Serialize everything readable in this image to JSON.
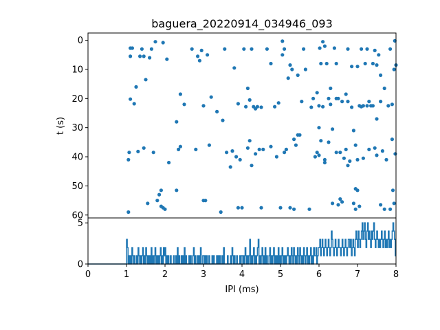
{
  "chart_data": [
    {
      "type": "scatter",
      "title": "baguera_20220914_034946_093",
      "ylabel": "t (s)",
      "xlim": [
        0,
        8
      ],
      "ylim": [
        61,
        -2.5
      ],
      "yticks": [
        0,
        10,
        20,
        30,
        40,
        50,
        60
      ],
      "color": "#1f77b4",
      "points": [
        [
          1.05,
          59.0
        ],
        [
          1.05,
          41.0
        ],
        [
          1.07,
          38.5
        ],
        [
          1.1,
          20.2
        ],
        [
          1.1,
          5.5
        ],
        [
          1.1,
          2.7
        ],
        [
          1.15,
          2.7
        ],
        [
          1.2,
          21.8
        ],
        [
          1.25,
          16.0
        ],
        [
          1.3,
          38.2
        ],
        [
          1.35,
          5.5
        ],
        [
          1.4,
          3.0
        ],
        [
          1.45,
          37.0
        ],
        [
          1.45,
          5.5
        ],
        [
          1.5,
          13.5
        ],
        [
          1.55,
          56.0
        ],
        [
          1.6,
          6.0
        ],
        [
          1.65,
          3.0
        ],
        [
          1.7,
          38.5
        ],
        [
          1.75,
          0.5
        ],
        [
          1.8,
          55.0
        ],
        [
          1.85,
          53.0
        ],
        [
          1.9,
          51.5
        ],
        [
          1.9,
          57.0
        ],
        [
          1.95,
          0.8
        ],
        [
          1.95,
          57.5
        ],
        [
          2.0,
          58.0
        ],
        [
          2.05,
          6.5
        ],
        [
          2.1,
          42.0
        ],
        [
          2.3,
          51.5
        ],
        [
          2.3,
          28.0
        ],
        [
          2.35,
          37.5
        ],
        [
          2.4,
          36.5
        ],
        [
          2.4,
          18.5
        ],
        [
          2.5,
          22.0
        ],
        [
          2.7,
          3.0
        ],
        [
          2.8,
          37.5
        ],
        [
          2.85,
          5.5
        ],
        [
          2.9,
          7.0
        ],
        [
          2.95,
          3.5
        ],
        [
          3.0,
          22.5
        ],
        [
          3.0,
          55.0
        ],
        [
          3.05,
          55.0
        ],
        [
          3.1,
          5.0
        ],
        [
          3.15,
          36.0
        ],
        [
          3.2,
          19.5
        ],
        [
          3.35,
          24.5
        ],
        [
          3.45,
          59.0
        ],
        [
          3.5,
          27.5
        ],
        [
          3.55,
          3.0
        ],
        [
          3.6,
          38.5
        ],
        [
          3.7,
          43.5
        ],
        [
          3.75,
          38.0
        ],
        [
          3.8,
          9.5
        ],
        [
          3.85,
          40.0
        ],
        [
          3.9,
          21.8
        ],
        [
          3.9,
          57.5
        ],
        [
          3.95,
          41.0
        ],
        [
          4.0,
          57.5
        ],
        [
          4.05,
          3.0
        ],
        [
          4.1,
          22.8
        ],
        [
          4.15,
          16.5
        ],
        [
          4.15,
          37.0
        ],
        [
          4.2,
          20.5
        ],
        [
          4.2,
          34.5
        ],
        [
          4.25,
          3.0
        ],
        [
          4.25,
          43.0
        ],
        [
          4.3,
          22.8
        ],
        [
          4.35,
          23.5
        ],
        [
          4.35,
          39.0
        ],
        [
          4.4,
          22.8
        ],
        [
          4.45,
          37.5
        ],
        [
          4.5,
          23.0
        ],
        [
          4.5,
          57.5
        ],
        [
          4.55,
          37.5
        ],
        [
          4.65,
          3.0
        ],
        [
          4.75,
          36.5
        ],
        [
          4.75,
          8.0
        ],
        [
          4.85,
          22.8
        ],
        [
          4.9,
          40.0
        ],
        [
          4.95,
          21.5
        ],
        [
          5.0,
          57.5
        ],
        [
          5.05,
          5.0
        ],
        [
          5.05,
          0.3
        ],
        [
          5.1,
          38.5
        ],
        [
          5.1,
          3.0
        ],
        [
          5.15,
          37.5
        ],
        [
          5.2,
          13.0
        ],
        [
          5.25,
          57.5
        ],
        [
          5.25,
          8.5
        ],
        [
          5.3,
          10.0
        ],
        [
          5.35,
          34.0
        ],
        [
          5.35,
          58.0
        ],
        [
          5.4,
          36.0
        ],
        [
          5.45,
          32.5
        ],
        [
          5.45,
          12.0
        ],
        [
          5.5,
          32.5
        ],
        [
          5.55,
          21.0
        ],
        [
          5.6,
          3.0
        ],
        [
          5.65,
          10.0
        ],
        [
          5.75,
          58.0
        ],
        [
          5.8,
          23.0
        ],
        [
          5.85,
          20.0
        ],
        [
          5.9,
          40.0
        ],
        [
          5.95,
          18.0
        ],
        [
          5.95,
          38.5
        ],
        [
          6.0,
          39.5
        ],
        [
          6.0,
          30.0
        ],
        [
          6.0,
          22.5
        ],
        [
          6.02,
          2.7
        ],
        [
          6.05,
          8.0
        ],
        [
          6.05,
          34.5
        ],
        [
          6.1,
          22.8
        ],
        [
          6.1,
          0.5
        ],
        [
          6.15,
          41.0
        ],
        [
          6.15,
          2.0
        ],
        [
          6.15,
          42.0
        ],
        [
          6.2,
          8.0
        ],
        [
          6.25,
          35.0
        ],
        [
          6.25,
          20.0
        ],
        [
          6.3,
          16.5
        ],
        [
          6.3,
          22.0
        ],
        [
          6.35,
          30.5
        ],
        [
          6.35,
          56.0
        ],
        [
          6.4,
          2.7
        ],
        [
          6.45,
          8.0
        ],
        [
          6.45,
          20.0
        ],
        [
          6.45,
          38.5
        ],
        [
          6.5,
          56.5
        ],
        [
          6.5,
          20.0
        ],
        [
          6.55,
          54.5
        ],
        [
          6.55,
          38.5
        ],
        [
          6.6,
          21.0
        ],
        [
          6.6,
          55.5
        ],
        [
          6.65,
          40.5
        ],
        [
          6.7,
          37.5
        ],
        [
          6.7,
          18.5
        ],
        [
          6.75,
          21.0
        ],
        [
          6.75,
          3.0
        ],
        [
          6.75,
          43.0
        ],
        [
          6.8,
          41.5
        ],
        [
          6.85,
          9.0
        ],
        [
          6.85,
          23.0
        ],
        [
          6.9,
          31.0
        ],
        [
          6.9,
          56.0
        ],
        [
          6.95,
          51.0
        ],
        [
          6.95,
          58.0
        ],
        [
          6.95,
          36.0
        ],
        [
          7.0,
          41.0
        ],
        [
          7.0,
          51.5
        ],
        [
          7.0,
          9.0
        ],
        [
          7.05,
          22.5
        ],
        [
          7.05,
          57.0
        ],
        [
          7.1,
          3.0
        ],
        [
          7.1,
          22.8
        ],
        [
          7.15,
          40.5
        ],
        [
          7.15,
          22.5
        ],
        [
          7.2,
          8.0
        ],
        [
          7.25,
          22.5
        ],
        [
          7.25,
          3.0
        ],
        [
          7.3,
          37.5
        ],
        [
          7.3,
          21.0
        ],
        [
          7.35,
          22.5
        ],
        [
          7.4,
          8.0
        ],
        [
          7.4,
          22.5
        ],
        [
          7.45,
          37.0
        ],
        [
          7.5,
          39.5
        ],
        [
          7.5,
          27.0
        ],
        [
          7.55,
          5.0
        ],
        [
          7.6,
          56.5
        ],
        [
          7.6,
          21.0
        ],
        [
          7.65,
          38.0
        ],
        [
          7.7,
          58.0
        ],
        [
          7.75,
          41.0
        ],
        [
          7.8,
          22.5
        ],
        [
          7.85,
          58.0
        ],
        [
          7.85,
          3.0
        ],
        [
          7.9,
          34.0
        ],
        [
          7.95,
          10.0
        ],
        [
          8.0,
          8.5
        ],
        [
          7.95,
          56.0
        ],
        [
          7.92,
          51.5
        ],
        [
          7.98,
          39.0
        ],
        [
          7.97,
          0.2
        ],
        [
          7.9,
          22.0
        ],
        [
          7.7,
          16.5
        ],
        [
          7.6,
          12.0
        ],
        [
          7.5,
          8.5
        ],
        [
          7.45,
          3.5
        ]
      ]
    },
    {
      "type": "line",
      "xlabel": "IPI (ms)",
      "ylabel": "",
      "xlim": [
        0,
        8
      ],
      "ylim": [
        0,
        5.6
      ],
      "xticks": [
        0,
        1,
        2,
        3,
        4,
        5,
        6,
        7,
        8
      ],
      "yticks": [
        0,
        5
      ],
      "color": "#1f77b4",
      "bin_width": 0.02,
      "counts": [
        0,
        0,
        0,
        0,
        0,
        0,
        0,
        0,
        0,
        0,
        0,
        0,
        0,
        0,
        0,
        0,
        0,
        0,
        0,
        0,
        0,
        0,
        0,
        0,
        0,
        0,
        0,
        0,
        0,
        0,
        0,
        0,
        0,
        0,
        0,
        0,
        0,
        0,
        0,
        0,
        0,
        0,
        0,
        0,
        0,
        0,
        0,
        0,
        0,
        0,
        3,
        2,
        0,
        1,
        0,
        1,
        0,
        2,
        1,
        0,
        1,
        0,
        0,
        1,
        0,
        2,
        1,
        0,
        1,
        0,
        1,
        2,
        0,
        1,
        0,
        2,
        1,
        0,
        1,
        0,
        1,
        0,
        2,
        0,
        1,
        0,
        1,
        2,
        0,
        1,
        0,
        1,
        0,
        1,
        2,
        0,
        1,
        0,
        2,
        1,
        2,
        0,
        1,
        0,
        1,
        0,
        0,
        1,
        0,
        0,
        0,
        1,
        0,
        0,
        1,
        0,
        2,
        0,
        1,
        0,
        0,
        1,
        0,
        1,
        0,
        2,
        0,
        1,
        0,
        0,
        0,
        1,
        0,
        1,
        0,
        0,
        1,
        2,
        0,
        1,
        0,
        0,
        1,
        0,
        1,
        0,
        2,
        0,
        0,
        1,
        1,
        0,
        1,
        0,
        1,
        0,
        0,
        1,
        0,
        0,
        0,
        1,
        0,
        1,
        0,
        0,
        0,
        1,
        0,
        1,
        0,
        1,
        0,
        0,
        1,
        0,
        2,
        0,
        0,
        0,
        0,
        1,
        0,
        0,
        0,
        1,
        0,
        2,
        1,
        0,
        1,
        0,
        0,
        1,
        0,
        0,
        0,
        1,
        0,
        1,
        1,
        0,
        1,
        0,
        2,
        1,
        0,
        1,
        0,
        1,
        3,
        0,
        1,
        0,
        1,
        2,
        0,
        1,
        0,
        1,
        2,
        3,
        0,
        1,
        0,
        1,
        2,
        0,
        1,
        0,
        2,
        0,
        1,
        0,
        0,
        1,
        2,
        0,
        1,
        0,
        1,
        2,
        0,
        1,
        0,
        1,
        0,
        2,
        0,
        1,
        0,
        1,
        2,
        0,
        1,
        0,
        1,
        0,
        1,
        2,
        1,
        0,
        1,
        0,
        2,
        1,
        0,
        2,
        1,
        0,
        1,
        0,
        2,
        1,
        0,
        2,
        1,
        0,
        1,
        0,
        2,
        1,
        0,
        1,
        2,
        0,
        1,
        0,
        1,
        2,
        0,
        1,
        0,
        2,
        1,
        1,
        2,
        0,
        1,
        2,
        2,
        3,
        1,
        2,
        3,
        2,
        1,
        2,
        3,
        2,
        1,
        2,
        3,
        2,
        1,
        2,
        4,
        3,
        2,
        1,
        2,
        3,
        2,
        1,
        2,
        3,
        2,
        2,
        1,
        2,
        3,
        2,
        1,
        2,
        3,
        2,
        1,
        2,
        3,
        3,
        2,
        3,
        1,
        2,
        3,
        2,
        1,
        3,
        4,
        3,
        2,
        4,
        3,
        2,
        3,
        4,
        5,
        3,
        4,
        5,
        3,
        2,
        4,
        5,
        3,
        4,
        3,
        2,
        4,
        3,
        4,
        5,
        3,
        2,
        3,
        4,
        3,
        2,
        3,
        2,
        3,
        4,
        3,
        2,
        3,
        4,
        2,
        3,
        2,
        3,
        4,
        2,
        3,
        2,
        3,
        4,
        5,
        4,
        3,
        1
      ]
    }
  ]
}
